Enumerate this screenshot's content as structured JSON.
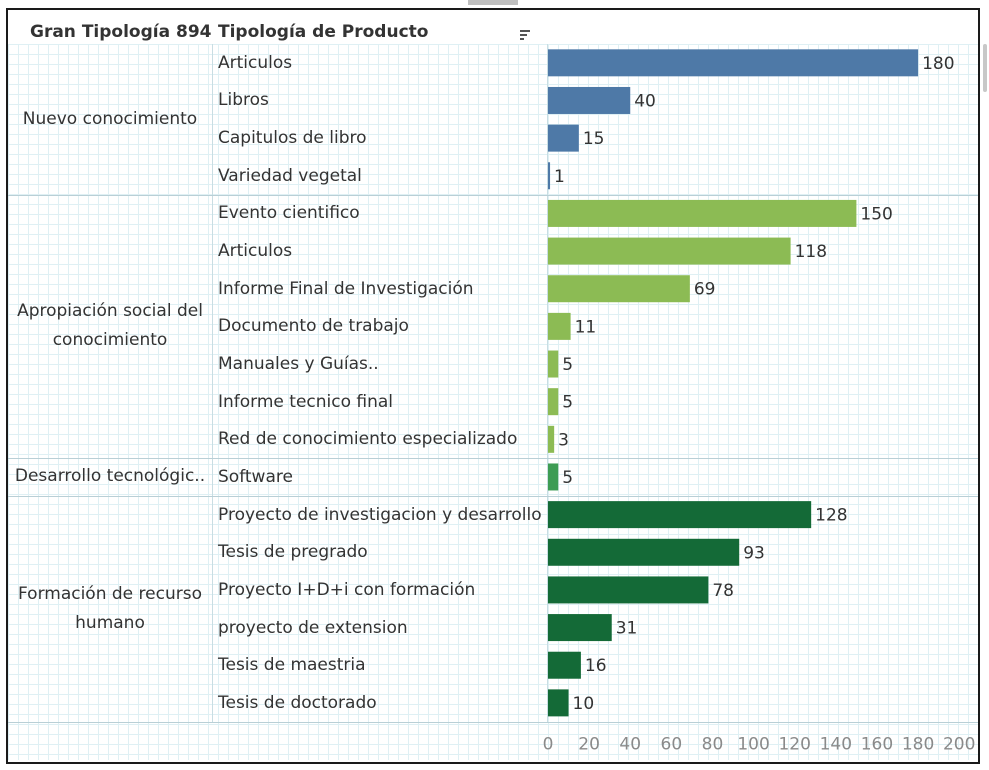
{
  "chart_data": {
    "type": "bar",
    "orientation": "horizontal",
    "header": {
      "group_column": "Gran Tipología 894",
      "category_column": "Tipología de Producto"
    },
    "groups": [
      {
        "name": "Nuevo conocimiento",
        "color": "#4e79a7",
        "items": [
          {
            "label": "Articulos",
            "value": 180
          },
          {
            "label": "Libros",
            "value": 40
          },
          {
            "label": "Capitulos de libro",
            "value": 15
          },
          {
            "label": "Variedad vegetal",
            "value": 1
          }
        ]
      },
      {
        "name": "Apropiación social del conocimiento",
        "color": "#8cbb54",
        "items": [
          {
            "label": "Evento cientifico",
            "value": 150
          },
          {
            "label": "Articulos",
            "value": 118
          },
          {
            "label": "Informe Final de Investigación",
            "value": 69
          },
          {
            "label": "Documento de trabajo",
            "value": 11
          },
          {
            "label": "Manuales y Guías..",
            "value": 5
          },
          {
            "label": "Informe tecnico final",
            "value": 5
          },
          {
            "label": "Red de conocimiento especializado",
            "value": 3
          }
        ]
      },
      {
        "name": "Desarrollo tecnológic..",
        "color": "#3d9c54",
        "items": [
          {
            "label": "Software",
            "value": 5
          }
        ]
      },
      {
        "name": "Formación de recurso humano",
        "color": "#146a37",
        "items": [
          {
            "label": "Proyecto de investigacion y desarrollo",
            "value": 128
          },
          {
            "label": "Tesis de pregrado",
            "value": 93
          },
          {
            "label": "Proyecto I+D+i con formación",
            "value": 78
          },
          {
            "label": "proyecto de extension",
            "value": 31
          },
          {
            "label": "Tesis de maestria",
            "value": 16
          },
          {
            "label": "Tesis de doctorado",
            "value": 10
          }
        ]
      }
    ],
    "xlim": [
      0,
      200
    ],
    "ticks": [
      "0",
      "20",
      "40",
      "60",
      "80",
      "100",
      "120",
      "140",
      "160",
      "180",
      "200"
    ],
    "grid": true
  }
}
